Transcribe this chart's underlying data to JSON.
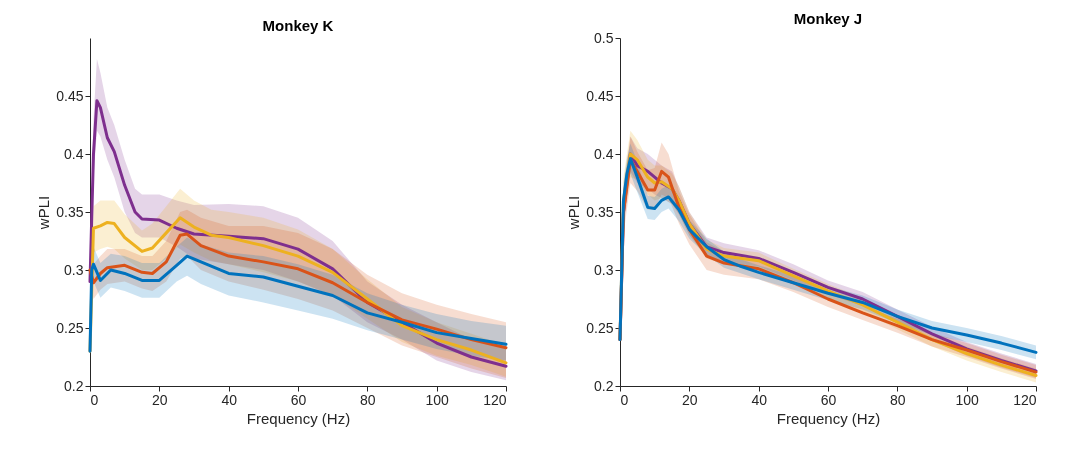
{
  "chart_data": [
    {
      "type": "line",
      "title": "Monkey K",
      "xlabel": "Frequency (Hz)",
      "ylabel": "wPLI",
      "xlim": [
        0,
        120
      ],
      "xticks": [
        0,
        20,
        40,
        60,
        80,
        100,
        120
      ],
      "ylim": [
        0.2,
        0.5
      ],
      "yticks": [
        0.2,
        0.25,
        0.3,
        0.35,
        0.4,
        0.45
      ],
      "grid": false,
      "series": [
        {
          "color": "#7e2f8e",
          "x": [
            0,
            1,
            2,
            3,
            5,
            7,
            10,
            13,
            15,
            20,
            25,
            30,
            40,
            50,
            60,
            70,
            80,
            90,
            100,
            110,
            120
          ],
          "values": [
            0.29,
            0.4,
            0.446,
            0.44,
            0.414,
            0.402,
            0.373,
            0.35,
            0.344,
            0.343,
            0.336,
            0.331,
            0.329,
            0.327,
            0.318,
            0.301,
            0.272,
            0.255,
            0.237,
            0.225,
            0.217
          ],
          "lower": [
            0.28,
            0.38,
            0.42,
            0.415,
            0.395,
            0.38,
            0.35,
            0.332,
            0.328,
            0.328,
            0.32,
            0.31,
            0.305,
            0.3,
            0.29,
            0.278,
            0.255,
            0.24,
            0.222,
            0.212,
            0.205
          ],
          "upper": [
            0.3,
            0.43,
            0.482,
            0.47,
            0.44,
            0.425,
            0.395,
            0.37,
            0.365,
            0.365,
            0.36,
            0.356,
            0.357,
            0.355,
            0.345,
            0.325,
            0.29,
            0.27,
            0.255,
            0.24,
            0.232
          ]
        },
        {
          "color": "#edb120",
          "x": [
            0,
            1,
            3,
            5,
            7,
            10,
            15,
            18,
            22,
            26,
            30,
            35,
            40,
            50,
            60,
            70,
            80,
            90,
            100,
            110,
            120
          ],
          "values": [
            0.23,
            0.336,
            0.338,
            0.341,
            0.34,
            0.328,
            0.316,
            0.319,
            0.332,
            0.345,
            0.337,
            0.33,
            0.328,
            0.321,
            0.312,
            0.298,
            0.275,
            0.252,
            0.24,
            0.231,
            0.22
          ],
          "lower": [
            0.22,
            0.315,
            0.318,
            0.32,
            0.318,
            0.31,
            0.3,
            0.3,
            0.31,
            0.322,
            0.315,
            0.308,
            0.305,
            0.298,
            0.29,
            0.278,
            0.258,
            0.238,
            0.226,
            0.218,
            0.208
          ],
          "upper": [
            0.24,
            0.355,
            0.36,
            0.36,
            0.36,
            0.348,
            0.334,
            0.34,
            0.355,
            0.37,
            0.36,
            0.352,
            0.35,
            0.345,
            0.335,
            0.318,
            0.292,
            0.268,
            0.255,
            0.245,
            0.235
          ]
        },
        {
          "color": "#d95319",
          "x": [
            0,
            1,
            3,
            5,
            10,
            15,
            18,
            22,
            26,
            28,
            32,
            40,
            50,
            60,
            70,
            80,
            90,
            100,
            110,
            120
          ],
          "values": [
            0.3,
            0.289,
            0.297,
            0.302,
            0.304,
            0.298,
            0.297,
            0.307,
            0.33,
            0.331,
            0.321,
            0.312,
            0.307,
            0.301,
            0.289,
            0.272,
            0.257,
            0.249,
            0.24,
            0.233
          ],
          "lower": [
            0.29,
            0.275,
            0.283,
            0.288,
            0.29,
            0.284,
            0.282,
            0.29,
            0.31,
            0.312,
            0.3,
            0.29,
            0.283,
            0.275,
            0.265,
            0.25,
            0.235,
            0.225,
            0.215,
            0.207
          ],
          "upper": [
            0.31,
            0.305,
            0.312,
            0.318,
            0.318,
            0.312,
            0.312,
            0.325,
            0.35,
            0.352,
            0.345,
            0.338,
            0.338,
            0.332,
            0.318,
            0.296,
            0.28,
            0.27,
            0.262,
            0.255
          ]
        },
        {
          "color": "#0072bd",
          "x": [
            0,
            0.5,
            1,
            3,
            6,
            10,
            15,
            20,
            25,
            28,
            32,
            40,
            50,
            60,
            70,
            80,
            90,
            100,
            110,
            120
          ],
          "values": [
            0.23,
            0.3,
            0.305,
            0.291,
            0.3,
            0.297,
            0.291,
            0.291,
            0.304,
            0.312,
            0.307,
            0.297,
            0.294,
            0.286,
            0.278,
            0.263,
            0.255,
            0.246,
            0.241,
            0.236
          ],
          "lower": [
            0.22,
            0.285,
            0.29,
            0.276,
            0.285,
            0.282,
            0.276,
            0.276,
            0.29,
            0.295,
            0.288,
            0.278,
            0.272,
            0.265,
            0.258,
            0.248,
            0.24,
            0.232,
            0.226,
            0.222
          ],
          "upper": [
            0.24,
            0.315,
            0.32,
            0.306,
            0.314,
            0.312,
            0.306,
            0.306,
            0.32,
            0.328,
            0.322,
            0.315,
            0.312,
            0.305,
            0.296,
            0.28,
            0.27,
            0.262,
            0.256,
            0.252
          ]
        }
      ]
    },
    {
      "type": "line",
      "title": "Monkey J",
      "xlabel": "Frequency (Hz)",
      "ylabel": "wPLI",
      "xlim": [
        0,
        120
      ],
      "xticks": [
        0,
        20,
        40,
        60,
        80,
        100,
        120
      ],
      "ylim": [
        0.2,
        0.5
      ],
      "yticks": [
        0.2,
        0.25,
        0.3,
        0.35,
        0.4,
        0.45,
        0.5
      ],
      "grid": false,
      "series": [
        {
          "color": "#7e2f8e",
          "x": [
            0,
            1,
            3,
            5,
            8,
            10,
            12,
            15,
            17,
            20,
            25,
            30,
            40,
            50,
            60,
            70,
            80,
            90,
            100,
            110,
            120
          ],
          "values": [
            0.24,
            0.35,
            0.4,
            0.39,
            0.385,
            0.38,
            0.375,
            0.37,
            0.36,
            0.34,
            0.32,
            0.315,
            0.31,
            0.298,
            0.285,
            0.275,
            0.26,
            0.245,
            0.232,
            0.222,
            0.213
          ],
          "lower": [
            0.235,
            0.335,
            0.385,
            0.375,
            0.37,
            0.365,
            0.362,
            0.357,
            0.348,
            0.33,
            0.312,
            0.307,
            0.303,
            0.291,
            0.279,
            0.269,
            0.254,
            0.239,
            0.226,
            0.216,
            0.207
          ],
          "upper": [
            0.245,
            0.365,
            0.415,
            0.405,
            0.4,
            0.395,
            0.39,
            0.385,
            0.372,
            0.35,
            0.328,
            0.323,
            0.317,
            0.305,
            0.291,
            0.281,
            0.266,
            0.251,
            0.238,
            0.228,
            0.219
          ]
        },
        {
          "color": "#edb120",
          "x": [
            0,
            1,
            3,
            5,
            8,
            10,
            12,
            15,
            17,
            20,
            25,
            30,
            40,
            50,
            60,
            70,
            80,
            90,
            100,
            110,
            120
          ],
          "values": [
            0.24,
            0.36,
            0.4,
            0.395,
            0.38,
            0.375,
            0.376,
            0.37,
            0.36,
            0.34,
            0.318,
            0.312,
            0.308,
            0.295,
            0.282,
            0.27,
            0.255,
            0.24,
            0.228,
            0.218,
            0.209
          ],
          "lower": [
            0.235,
            0.34,
            0.38,
            0.378,
            0.365,
            0.36,
            0.362,
            0.357,
            0.348,
            0.33,
            0.31,
            0.305,
            0.301,
            0.289,
            0.276,
            0.264,
            0.249,
            0.234,
            0.222,
            0.212,
            0.203
          ],
          "upper": [
            0.245,
            0.38,
            0.42,
            0.412,
            0.395,
            0.39,
            0.39,
            0.383,
            0.372,
            0.35,
            0.326,
            0.319,
            0.315,
            0.301,
            0.288,
            0.276,
            0.261,
            0.246,
            0.234,
            0.224,
            0.215
          ]
        },
        {
          "color": "#d95319",
          "x": [
            0,
            1,
            3,
            5,
            8,
            10,
            12,
            14,
            17,
            20,
            25,
            30,
            40,
            50,
            60,
            70,
            80,
            90,
            100,
            110,
            120
          ],
          "values": [
            0.24,
            0.35,
            0.395,
            0.385,
            0.369,
            0.369,
            0.385,
            0.38,
            0.354,
            0.335,
            0.312,
            0.306,
            0.301,
            0.289,
            0.275,
            0.263,
            0.252,
            0.24,
            0.231,
            0.221,
            0.212
          ],
          "lower": [
            0.235,
            0.33,
            0.375,
            0.368,
            0.352,
            0.352,
            0.365,
            0.362,
            0.34,
            0.322,
            0.3,
            0.296,
            0.292,
            0.281,
            0.268,
            0.257,
            0.246,
            0.234,
            0.225,
            0.215,
            0.206
          ],
          "upper": [
            0.245,
            0.37,
            0.415,
            0.402,
            0.386,
            0.388,
            0.41,
            0.4,
            0.368,
            0.348,
            0.324,
            0.316,
            0.31,
            0.297,
            0.282,
            0.269,
            0.258,
            0.246,
            0.237,
            0.227,
            0.218
          ]
        },
        {
          "color": "#0072bd",
          "x": [
            0,
            1,
            2,
            3,
            5,
            8,
            10,
            12,
            14,
            17,
            20,
            25,
            30,
            35,
            40,
            50,
            60,
            70,
            80,
            90,
            100,
            110,
            120
          ],
          "values": [
            0.24,
            0.36,
            0.383,
            0.396,
            0.38,
            0.354,
            0.353,
            0.36,
            0.363,
            0.352,
            0.335,
            0.32,
            0.309,
            0.303,
            0.298,
            0.289,
            0.28,
            0.272,
            0.26,
            0.25,
            0.244,
            0.237,
            0.229
          ],
          "lower": [
            0.235,
            0.345,
            0.37,
            0.383,
            0.367,
            0.344,
            0.343,
            0.35,
            0.353,
            0.342,
            0.327,
            0.313,
            0.302,
            0.297,
            0.292,
            0.283,
            0.274,
            0.266,
            0.254,
            0.244,
            0.238,
            0.231,
            0.223
          ],
          "upper": [
            0.245,
            0.375,
            0.396,
            0.409,
            0.393,
            0.364,
            0.363,
            0.37,
            0.373,
            0.362,
            0.343,
            0.327,
            0.316,
            0.309,
            0.304,
            0.295,
            0.286,
            0.278,
            0.266,
            0.256,
            0.25,
            0.243,
            0.235
          ]
        }
      ]
    }
  ]
}
